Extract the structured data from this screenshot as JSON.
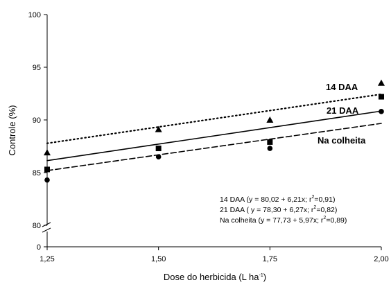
{
  "chart_data": {
    "type": "scatter",
    "xlabel": "Dose do herbicida (L ha",
    "xlabel_sup": "-1",
    "xlabel_close": ")",
    "ylabel": "Controle (%)",
    "xlim": [
      1.25,
      2.0
    ],
    "ylim_upper": [
      80,
      100
    ],
    "ylim_lower": [
      0,
      0
    ],
    "axis_break": true,
    "x_ticks": [
      {
        "value": 1.25,
        "label": "1,25"
      },
      {
        "value": 1.5,
        "label": "1,50"
      },
      {
        "value": 1.75,
        "label": "1,75"
      },
      {
        "value": 2.0,
        "label": "2,00"
      }
    ],
    "y_ticks": [
      {
        "value": 100,
        "label": "100"
      },
      {
        "value": 95,
        "label": "95"
      },
      {
        "value": 90,
        "label": "90"
      },
      {
        "value": 85,
        "label": "85"
      },
      {
        "value": 80,
        "label": "80"
      },
      {
        "value": 0,
        "label": "0"
      }
    ],
    "series": [
      {
        "name": "14 DAA",
        "marker": "triangle",
        "line_style": "dotted",
        "x": [
          1.25,
          1.5,
          1.75,
          2.0
        ],
        "y": [
          86.9,
          89.1,
          90.0,
          93.5
        ],
        "fit": {
          "intercept": 80.02,
          "slope": 6.21
        }
      },
      {
        "name": "21 DAA",
        "marker": "square",
        "line_style": "solid",
        "x": [
          1.25,
          1.5,
          1.75,
          2.0
        ],
        "y": [
          85.3,
          87.3,
          87.9,
          92.2
        ],
        "fit": {
          "intercept": 78.3,
          "slope": 6.27
        }
      },
      {
        "name": "Na colheita",
        "marker": "circle",
        "line_style": "dashed",
        "x": [
          1.25,
          1.5,
          1.75,
          2.0
        ],
        "y": [
          84.3,
          86.5,
          87.3,
          90.8
        ],
        "fit": {
          "intercept": 77.73,
          "slope": 5.97
        }
      }
    ],
    "equations": [
      {
        "main": "14 DAA (y = 80,02 + 6,21x;  r",
        "sup": "2",
        "tail": "=0,91)"
      },
      {
        "main": "21 DAA ( y = 78,30 + 6,27x;  r",
        "sup": "2",
        "tail": "=0,82)"
      },
      {
        "main": "Na colheita (y = 77,73 + 5,97x;  r",
        "sup": "2",
        "tail": "=0,89)"
      }
    ]
  }
}
